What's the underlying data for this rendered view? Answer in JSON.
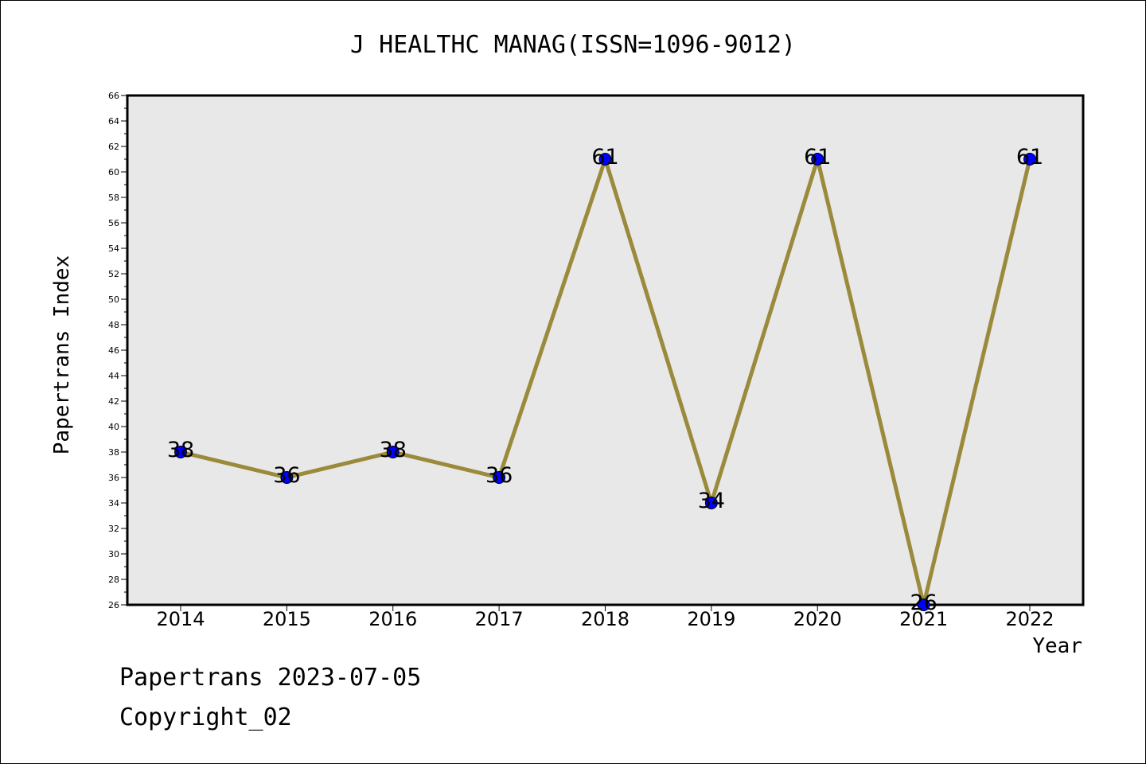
{
  "colors": {
    "plot_background": "#e8e8e8",
    "line": "#9a8a3c",
    "marker": "#0000ff",
    "axis": "#000000"
  },
  "chart_data": {
    "type": "line",
    "title": "J HEALTHC MANAG(ISSN=1096-9012)",
    "xlabel": "Year",
    "ylabel": "Papertrans Index",
    "x": [
      "2014",
      "2015",
      "2016",
      "2017",
      "2018",
      "2019",
      "2020",
      "2021",
      "2022"
    ],
    "series": [
      {
        "values": [
          38,
          36,
          38,
          36,
          61,
          34,
          61,
          26,
          61
        ]
      }
    ],
    "ylim": [
      26,
      66
    ],
    "yticks": [
      26,
      28,
      30,
      32,
      34,
      36,
      38,
      40,
      42,
      44,
      46,
      48,
      50,
      52,
      54,
      56,
      58,
      60,
      62,
      64,
      66
    ],
    "data_labels": [
      "38",
      "36",
      "38",
      "36",
      "61",
      "34",
      "61",
      "26",
      "61"
    ],
    "grid": false,
    "legend": "none"
  },
  "footer": {
    "line1": "Papertrans 2023-07-05",
    "line2": "Copyright_02"
  }
}
